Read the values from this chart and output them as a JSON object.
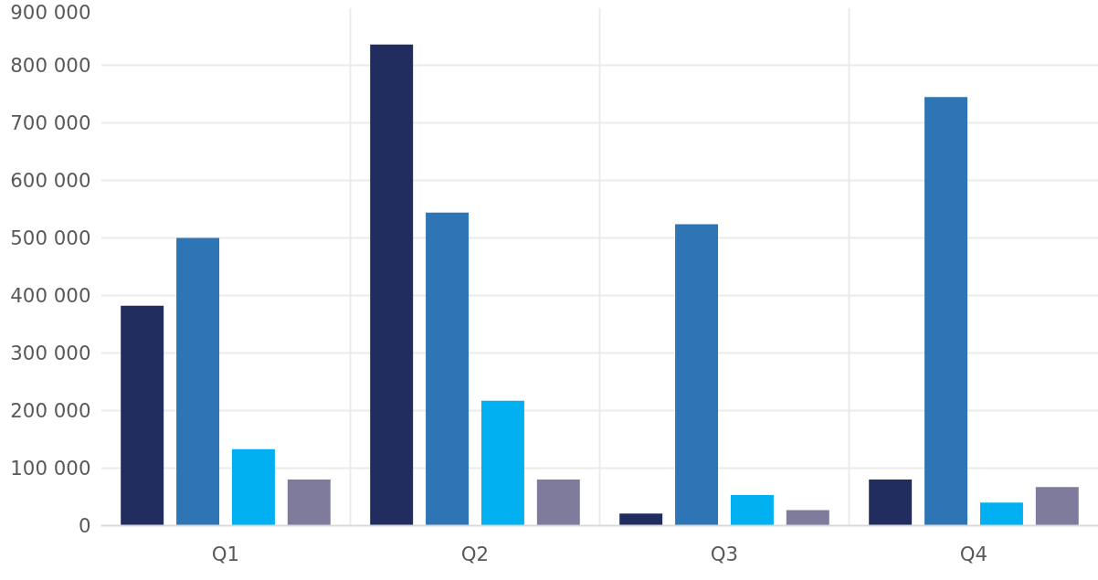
{
  "chart_data": {
    "type": "bar",
    "categories": [
      "Q1",
      "Q2",
      "Q3",
      "Q4"
    ],
    "series": [
      {
        "color": "#212d5e",
        "values": [
          382000,
          836000,
          21000,
          80000
        ]
      },
      {
        "color": "#2e75b6",
        "values": [
          500000,
          544000,
          524000,
          745000
        ]
      },
      {
        "color": "#00b0f0",
        "values": [
          133000,
          217000,
          53000,
          40000
        ]
      },
      {
        "color": "#7f7b9c",
        "values": [
          80000,
          80000,
          27000,
          67000
        ]
      }
    ],
    "ylim": [
      0,
      900000
    ],
    "yticks": [
      {
        "value": 0,
        "label": "0"
      },
      {
        "value": 100000,
        "label": "100 000"
      },
      {
        "value": 200000,
        "label": "200 000"
      },
      {
        "value": 300000,
        "label": "300 000"
      },
      {
        "value": 400000,
        "label": "400 000"
      },
      {
        "value": 500000,
        "label": "500 000"
      },
      {
        "value": 600000,
        "label": "600 000"
      },
      {
        "value": 700000,
        "label": "700 000"
      },
      {
        "value": 800000,
        "label": "800 000"
      },
      {
        "value": 900000,
        "label": "900 000"
      }
    ],
    "grid": true
  }
}
